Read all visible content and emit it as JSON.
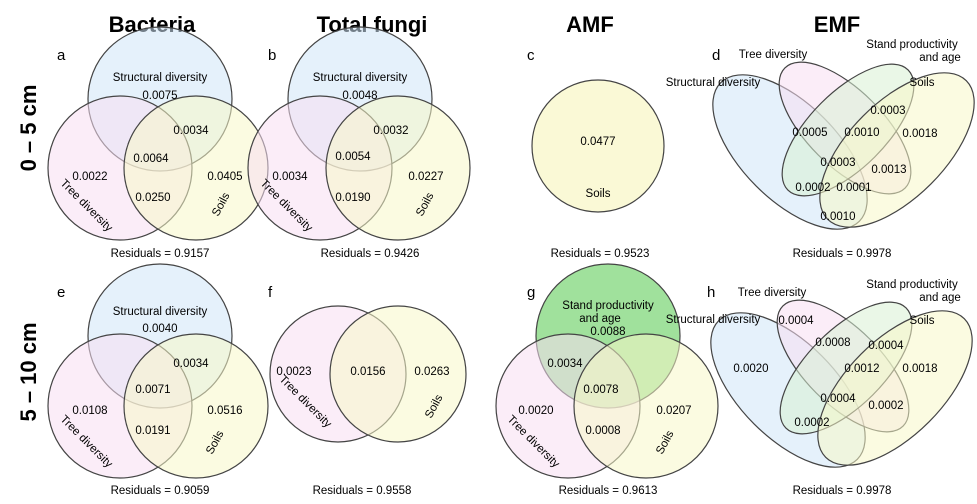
{
  "columns": [
    "Bacteria",
    "Total fungi",
    "AMF",
    "EMF"
  ],
  "rows": [
    "0 – 5 cm",
    "5 – 10 cm"
  ],
  "colors": {
    "structural": "#cfe6f7",
    "tree": "#f7dff2",
    "soils": "#f8f7c8",
    "stand": "#d9f1d4",
    "stand_strong": "#8fdc8b"
  },
  "panels": {
    "a": {
      "letter": "a",
      "labels": {
        "structural": "Structural diversity",
        "tree": "Tree diversity",
        "soils": "Soils"
      },
      "values": {
        "s_only": "0.0075",
        "t_only": "0.0022",
        "so_only": "0.0405",
        "s_so": "0.0034",
        "t_so": "0.0250",
        "all": "0.0064"
      },
      "residuals": "Residuals = 0.9157"
    },
    "b": {
      "letter": "b",
      "labels": {
        "structural": "Structural diversity",
        "tree": "Tree diversity",
        "soils": "Soils"
      },
      "values": {
        "s_only": "0.0048",
        "t_only": "0.0034",
        "so_only": "0.0227",
        "s_so": "0.0032",
        "t_so": "0.0190",
        "all": "0.0054"
      },
      "residuals": "Residuals = 0.9426"
    },
    "c": {
      "letter": "c",
      "labels": {
        "soils": "Soils"
      },
      "values": {
        "so_only": "0.0477"
      },
      "residuals": "Residuals = 0.9523"
    },
    "d": {
      "letter": "d",
      "labels": {
        "structural": "Structural diversity",
        "tree": "Tree diversity",
        "stand_l1": "Stand productivity",
        "stand_l2": "and age",
        "soils": "Soils"
      },
      "values": {
        "v1": "0.0003",
        "v2": "0.0018",
        "v3": "0.0005",
        "v4": "0.0010",
        "v5": "0.0013",
        "v6": "0.0003",
        "v7": "0.0002",
        "v8": "0.0001",
        "v9": "0.0010"
      },
      "residuals": "Residuals = 0.9978"
    },
    "e": {
      "letter": "e",
      "labels": {
        "structural": "Structural diversity",
        "tree": "Tree diversity",
        "soils": "Soils"
      },
      "values": {
        "s_only": "0.0040",
        "t_only": "0.0108",
        "so_only": "0.0516",
        "s_so": "0.0034",
        "t_so": "0.0191",
        "all": "0.0071"
      },
      "residuals": "Residuals = 0.9059"
    },
    "f": {
      "letter": "f",
      "labels": {
        "tree": "Tree diversity",
        "soils": "Soils"
      },
      "values": {
        "t_only": "0.0023",
        "t_so": "0.0156",
        "so_only": "0.0263"
      },
      "residuals": "Residuals = 0.9558"
    },
    "g": {
      "letter": "g",
      "labels": {
        "stand_l1": "Stand productivity",
        "stand_l2": "and age",
        "tree": "Tree diversity",
        "soils": "Soils"
      },
      "values": {
        "st_only": "0.0088",
        "st_t": "0.0034",
        "all": "0.0078",
        "t_only": "0.0020",
        "t_so": "0.0008",
        "so_only": "0.0207"
      },
      "residuals": "Residuals = 0.9613"
    },
    "h": {
      "letter": "h",
      "labels": {
        "structural": "Structural diversity",
        "tree": "Tree diversity",
        "stand_l1": "Stand productivity",
        "stand_l2": "and age",
        "soils": "Soils"
      },
      "values": {
        "v1": "0.0004",
        "v2": "0.0008",
        "v3": "0.0004",
        "v4": "0.0020",
        "v5": "0.0012",
        "v6": "0.0018",
        "v7": "0.0004",
        "v8": "0.0002",
        "v9": "0.0002"
      },
      "residuals": "Residuals = 0.9978"
    }
  }
}
